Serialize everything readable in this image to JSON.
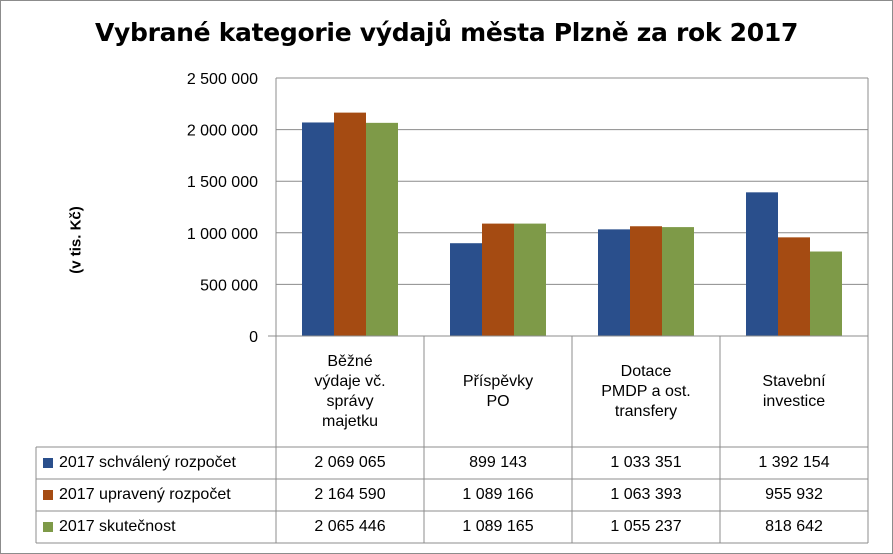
{
  "chart_data": {
    "type": "bar",
    "title": "Vybrané kategorie výdajů města Plzně za rok 2017",
    "ylabel": "(v tis. Kč)",
    "xlabel": "",
    "ylim": [
      0,
      2500000
    ],
    "yticks": [
      0,
      500000,
      1000000,
      1500000,
      2000000,
      2500000
    ],
    "ytick_labels": [
      "0",
      "500 000",
      "1 000 000",
      "1 500 000",
      "2 000 000",
      "2 500 000"
    ],
    "grid": true,
    "legend": "data table, bottom-left",
    "categories": [
      "Běžné výdaje vč. správy majetku",
      "Příspěvky PO",
      "Dotace PMDP a ost. transfery",
      "Stavební investice"
    ],
    "category_lines": [
      [
        "Běžné",
        "výdaje vč.",
        "správy",
        "majetku"
      ],
      [
        "Příspěvky",
        "PO"
      ],
      [
        "Dotace",
        "PMDP a ost.",
        "transfery"
      ],
      [
        "Stavební",
        "investice"
      ]
    ],
    "series": [
      {
        "name": "2017 schválený rozpočet",
        "color": "#2a4f8c",
        "values": [
          2069065,
          899143,
          1033351,
          1392154
        ],
        "labels": [
          "2 069 065",
          "899 143",
          "1 033 351",
          "1 392 154"
        ]
      },
      {
        "name": "2017 upravený rozpočet",
        "color": "#a54b12",
        "values": [
          2164590,
          1089166,
          1063393,
          955932
        ],
        "labels": [
          "2 164 590",
          "1 089 166",
          "1 063 393",
          "955 932"
        ]
      },
      {
        "name": "2017 skutečnost",
        "color": "#7e9a48",
        "values": [
          2065446,
          1089165,
          1055237,
          818642
        ],
        "labels": [
          "2 065 446",
          "1 089 165",
          "1 055 237",
          "818 642"
        ]
      }
    ]
  }
}
